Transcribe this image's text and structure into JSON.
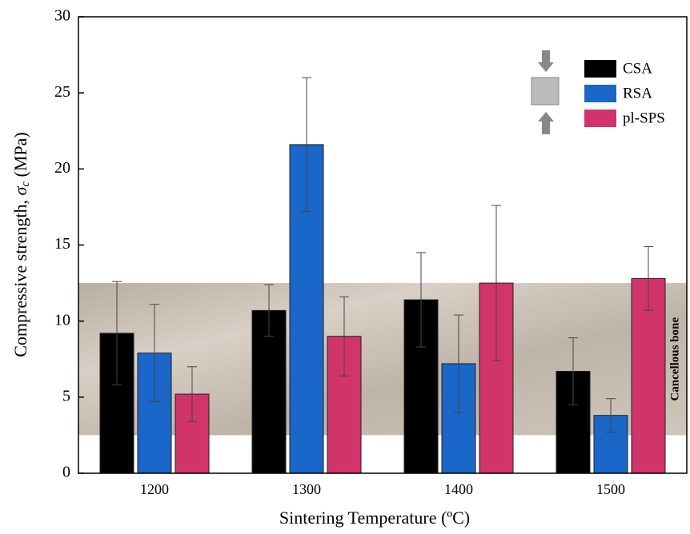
{
  "chart_data": {
    "type": "bar",
    "xlabel": "Sintering Temperature (ºC)",
    "ylabel": {
      "text": "Compressive strength, ",
      "symbol": "σ",
      "subscript": "c",
      "unit": " (MPa)"
    },
    "categories": [
      "1200",
      "1300",
      "1400",
      "1500"
    ],
    "series": [
      {
        "name": "CSA",
        "color": "#000000",
        "values": [
          9.2,
          10.7,
          11.4,
          6.7
        ],
        "errors": [
          3.4,
          1.7,
          3.1,
          2.2
        ]
      },
      {
        "name": "RSA",
        "color": "#1a66c9",
        "values": [
          7.9,
          21.6,
          7.2,
          3.8
        ],
        "errors": [
          3.2,
          4.4,
          3.2,
          1.1
        ]
      },
      {
        "name": "pl-SPS",
        "color": "#d1336b",
        "values": [
          5.2,
          9.0,
          12.5,
          12.8
        ],
        "errors": [
          1.8,
          2.6,
          5.1,
          2.1
        ]
      }
    ],
    "band": {
      "label": "Cancellous bone",
      "range": [
        2.5,
        12.5
      ]
    },
    "ylim": [
      0,
      30
    ],
    "yticks": [
      0,
      5,
      10,
      15,
      20,
      25,
      30
    ]
  }
}
